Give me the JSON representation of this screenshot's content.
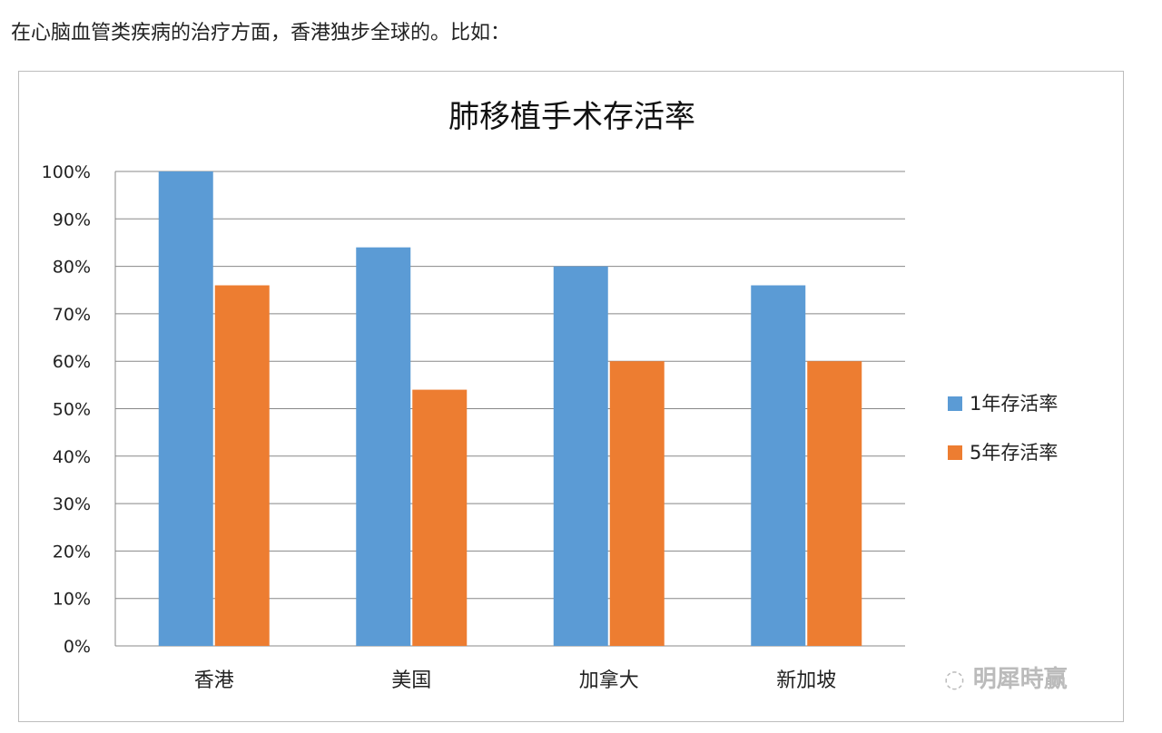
{
  "intro_text": "在心脑血管类疾病的治疗方面，香港独步全球的。比如：",
  "watermark": "明犀時赢",
  "chart_data": {
    "type": "bar",
    "title": "肺移植手术存活率",
    "categories": [
      "香港",
      "美国",
      "加拿大",
      "新加坡"
    ],
    "series": [
      {
        "name": "1年存活率",
        "color": "#5b9bd5",
        "values": [
          100,
          84,
          80,
          76
        ]
      },
      {
        "name": "5年存活率",
        "color": "#ed7d31",
        "values": [
          76,
          54,
          60,
          60
        ]
      }
    ],
    "ylim": [
      0,
      100
    ],
    "yticks": [
      "0%",
      "10%",
      "20%",
      "30%",
      "40%",
      "50%",
      "60%",
      "70%",
      "80%",
      "90%",
      "100%"
    ],
    "grid": true,
    "legend": "right"
  }
}
